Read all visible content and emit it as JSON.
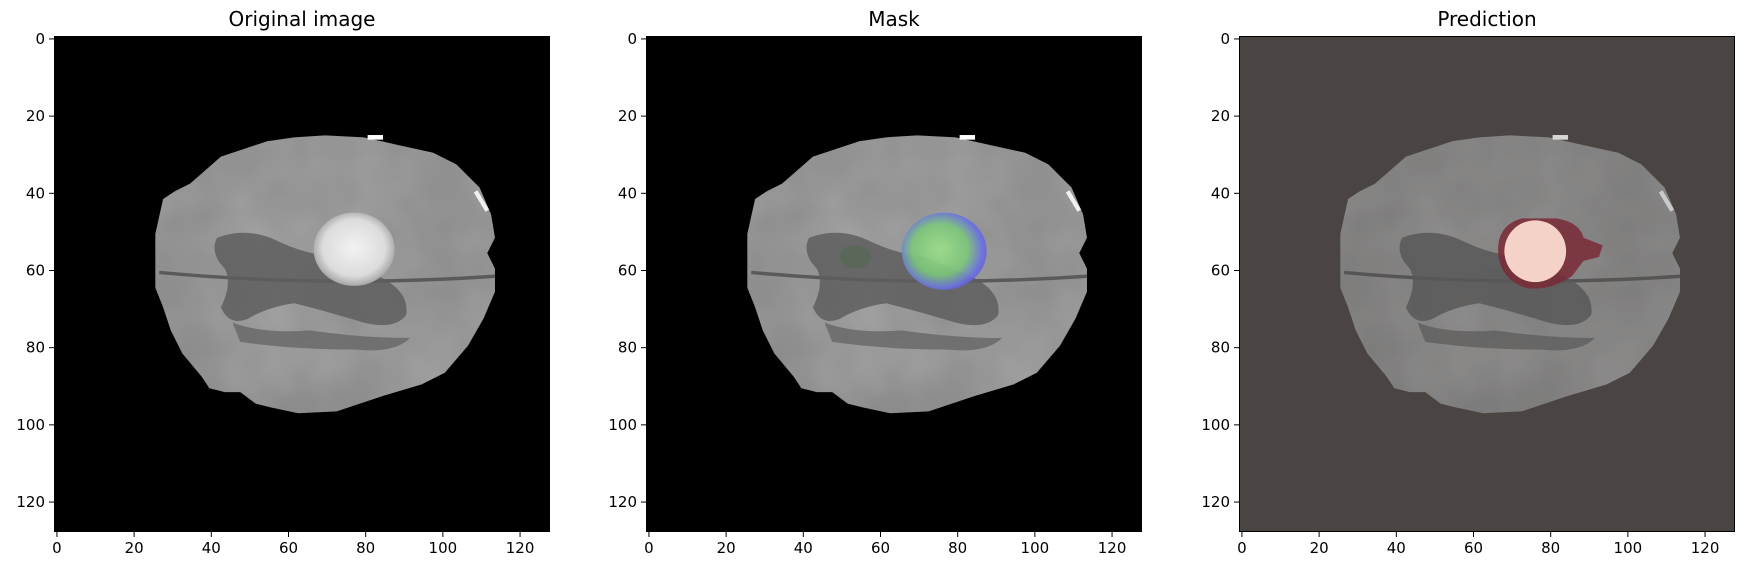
{
  "panels": [
    {
      "title": "Original image",
      "style": "original"
    },
    {
      "title": "Mask",
      "style": "mask"
    },
    {
      "title": "Prediction",
      "style": "prediction"
    }
  ],
  "axes": {
    "x_ticks": [
      "0",
      "20",
      "40",
      "60",
      "80",
      "100",
      "120"
    ],
    "y_ticks": [
      "0",
      "20",
      "40",
      "60",
      "80",
      "100",
      "120"
    ],
    "range": [
      0,
      128
    ]
  },
  "colors": {
    "background": "#000000",
    "prediction_background": "#4a4543",
    "mask_core": "#7fd47a",
    "mask_edge": "#5a5cf0",
    "prediction_fill": "#f4d2c8",
    "prediction_edge": "#7a2a36"
  }
}
